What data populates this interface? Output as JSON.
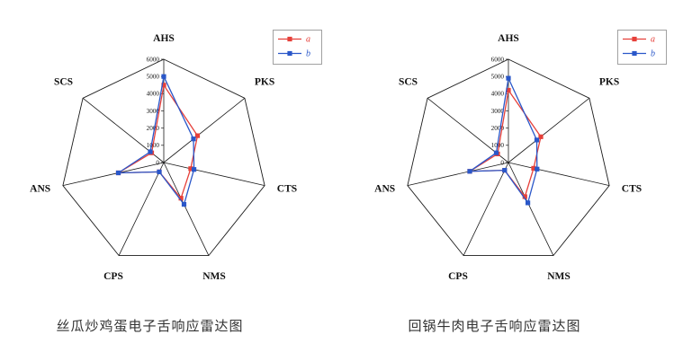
{
  "page": {
    "background": "#ffffff"
  },
  "chart_data": [
    {
      "type": "radar",
      "caption": "丝瓜炒鸡蛋电子舌响应雷达图",
      "axes": [
        "AHS",
        "PKS",
        "CTS",
        "NMS",
        "CPS",
        "ANS",
        "SCS"
      ],
      "max": 6000,
      "ticks": [
        0,
        1000,
        2000,
        3000,
        4000,
        5000,
        6000
      ],
      "grid": "spokes-and-outer-heptagon",
      "legend_position": "top-right",
      "line_color": "#1a1a1a",
      "series": [
        {
          "name": "a",
          "color": "#e6403a",
          "values": [
            4500,
            2500,
            1600,
            2300,
            600,
            2700,
            900
          ]
        },
        {
          "name": "b",
          "color": "#2a57c9",
          "values": [
            5000,
            2200,
            1800,
            2700,
            600,
            2700,
            1000
          ]
        }
      ]
    },
    {
      "type": "radar",
      "caption": "回锅牛肉电子舌响应雷达图",
      "axes": [
        "AHS",
        "PKS",
        "CTS",
        "NMS",
        "CPS",
        "ANS",
        "SCS"
      ],
      "max": 6000,
      "ticks": [
        0,
        1000,
        2000,
        3000,
        4000,
        5000,
        6000
      ],
      "grid": "spokes-and-outer-heptagon",
      "legend_position": "top-right",
      "line_color": "#1a1a1a",
      "series": [
        {
          "name": "a",
          "color": "#e6403a",
          "values": [
            4200,
            2400,
            1500,
            2200,
            500,
            2300,
            800
          ]
        },
        {
          "name": "b",
          "color": "#2a57c9",
          "values": [
            4900,
            2100,
            1700,
            2600,
            500,
            2300,
            900
          ]
        }
      ]
    }
  ]
}
